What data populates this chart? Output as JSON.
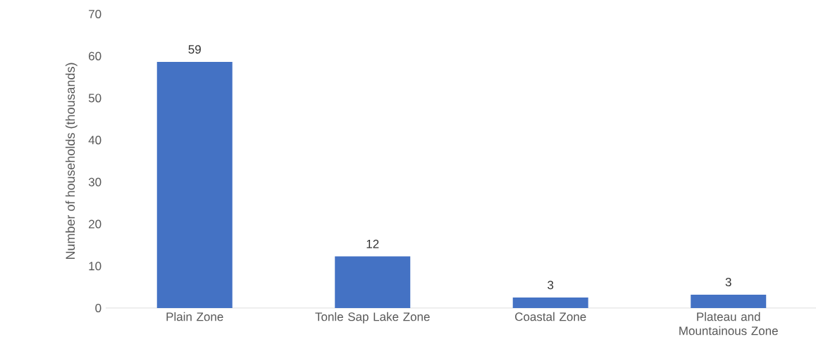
{
  "chart_data": {
    "type": "bar",
    "ylabel": "Number of households (thousands)",
    "categories": [
      "Plain Zone",
      "Tonle Sap Lake Zone",
      "Coastal Zone",
      "Plateau and Mountainous Zone"
    ],
    "values": [
      58.6,
      12.3,
      2.5,
      3.2
    ],
    "value_labels": [
      "59",
      "12",
      "3",
      "3"
    ],
    "color": "#4472c4",
    "ylim": [
      0,
      70
    ],
    "yticks": [
      0,
      10,
      20,
      30,
      40,
      50,
      60,
      70
    ],
    "grid": false
  }
}
